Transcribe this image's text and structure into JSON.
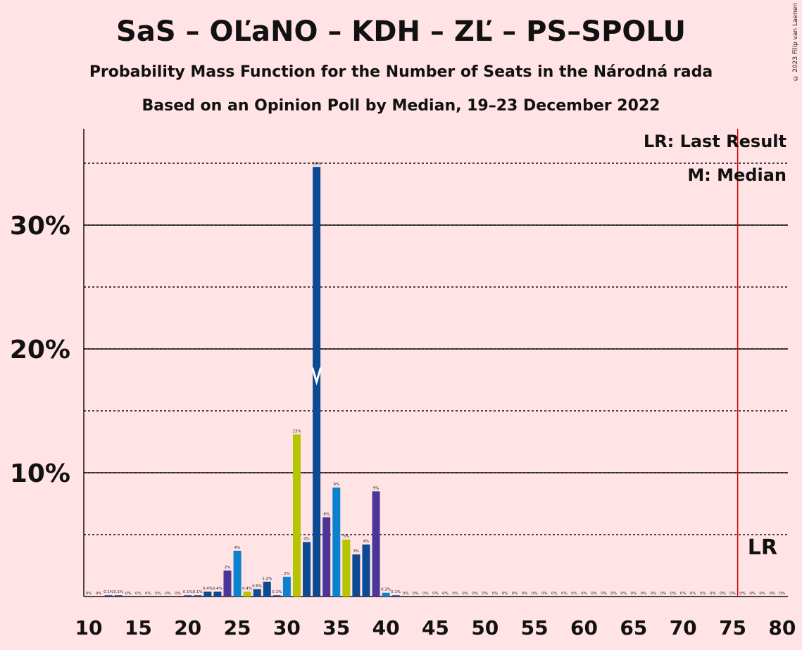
{
  "title": "SaS – OĽaNO – KDH – ZĽ – PS–SPOLU",
  "subtitle": "Probability Mass Function for the Number of Seats in the Národná rada",
  "subtitle2": "Based on an Opinion Poll by Median, 19–23 December 2022",
  "copyright": "© 2023 Filip van Laenen",
  "legend": {
    "lr": "LR: Last Result",
    "median": "M: Median"
  },
  "lr_marker_label": "LR",
  "median_marker_label": "M",
  "colors": {
    "background": "#FFE3E5",
    "blue_dark": "#0C4A93",
    "blue_light": "#0A82D0",
    "yellow_green": "#B7C400",
    "purple": "#4C3596",
    "last_result_line": "#D00000"
  },
  "chart_data": {
    "type": "bar",
    "xlim": [
      10,
      80
    ],
    "ylim": [
      0,
      38
    ],
    "x_ticks": [
      10,
      15,
      20,
      25,
      30,
      35,
      40,
      45,
      50,
      55,
      60,
      65,
      70,
      75,
      80
    ],
    "y_ticks": [
      {
        "value": 10,
        "label": "10%"
      },
      {
        "value": 20,
        "label": "20%"
      },
      {
        "value": 30,
        "label": "30%"
      }
    ],
    "dotted_gridlines": [
      5,
      10,
      15,
      20,
      25,
      30,
      35
    ],
    "solid_gridlines": [
      10,
      20,
      30
    ],
    "median": 33,
    "last_result": 76,
    "bars": [
      {
        "x": 10,
        "value": 0,
        "label": "0%",
        "color": "blue_dark"
      },
      {
        "x": 11,
        "value": 0,
        "label": "0%",
        "color": "blue_dark"
      },
      {
        "x": 12,
        "value": 0.1,
        "label": "0.1%",
        "color": "blue_dark"
      },
      {
        "x": 13,
        "value": 0.1,
        "label": "0.1%",
        "color": "blue_dark"
      },
      {
        "x": 14,
        "value": 0,
        "label": "0%",
        "color": "blue_dark"
      },
      {
        "x": 15,
        "value": 0,
        "label": "0%",
        "color": "blue_dark"
      },
      {
        "x": 16,
        "value": 0,
        "label": "0%",
        "color": "blue_dark"
      },
      {
        "x": 17,
        "value": 0,
        "label": "0%",
        "color": "blue_dark"
      },
      {
        "x": 18,
        "value": 0,
        "label": "0%",
        "color": "blue_dark"
      },
      {
        "x": 19,
        "value": 0,
        "label": "0%",
        "color": "blue_dark"
      },
      {
        "x": 20,
        "value": 0.1,
        "label": "0.1%",
        "color": "blue_dark"
      },
      {
        "x": 21,
        "value": 0.1,
        "label": "0.1%",
        "color": "blue_dark"
      },
      {
        "x": 22,
        "value": 0.4,
        "label": "0.4%",
        "color": "blue_dark"
      },
      {
        "x": 23,
        "value": 0.4,
        "label": "0.4%",
        "color": "blue_dark"
      },
      {
        "x": 24,
        "value": 2.1,
        "label": "2%",
        "color": "purple"
      },
      {
        "x": 25,
        "value": 3.7,
        "label": "4%",
        "color": "blue_light"
      },
      {
        "x": 26,
        "value": 0.4,
        "label": "0.4%",
        "color": "yellow_green"
      },
      {
        "x": 27,
        "value": 0.6,
        "label": "0.6%",
        "color": "blue_dark"
      },
      {
        "x": 28,
        "value": 1.2,
        "label": "1.2%",
        "color": "blue_dark"
      },
      {
        "x": 29,
        "value": 0.1,
        "label": "0.1%",
        "color": "blue_dark"
      },
      {
        "x": 30,
        "value": 1.6,
        "label": "2%",
        "color": "blue_light"
      },
      {
        "x": 31,
        "value": 13.1,
        "label": "13%",
        "color": "yellow_green"
      },
      {
        "x": 32,
        "value": 4.4,
        "label": "4%",
        "color": "blue_dark"
      },
      {
        "x": 33,
        "value": 34.7,
        "label": "35%",
        "color": "blue_dark"
      },
      {
        "x": 34,
        "value": 6.4,
        "label": "6%",
        "color": "purple"
      },
      {
        "x": 35,
        "value": 8.8,
        "label": "9%",
        "color": "blue_light"
      },
      {
        "x": 36,
        "value": 4.6,
        "label": "5%",
        "color": "yellow_green"
      },
      {
        "x": 37,
        "value": 3.4,
        "label": "3%",
        "color": "blue_dark"
      },
      {
        "x": 38,
        "value": 4.2,
        "label": "4%",
        "color": "blue_dark"
      },
      {
        "x": 39,
        "value": 8.5,
        "label": "9%",
        "color": "purple"
      },
      {
        "x": 40,
        "value": 0.3,
        "label": "0.3%",
        "color": "blue_light"
      },
      {
        "x": 41,
        "value": 0.1,
        "label": "0.1%",
        "color": "blue_dark"
      },
      {
        "x": 42,
        "value": 0,
        "label": "0%",
        "color": "blue_dark"
      },
      {
        "x": 43,
        "value": 0,
        "label": "0%",
        "color": "blue_dark"
      },
      {
        "x": 44,
        "value": 0,
        "label": "0%",
        "color": "blue_dark"
      },
      {
        "x": 45,
        "value": 0,
        "label": "0%",
        "color": "blue_dark"
      },
      {
        "x": 46,
        "value": 0,
        "label": "0%",
        "color": "blue_dark"
      },
      {
        "x": 47,
        "value": 0,
        "label": "0%",
        "color": "blue_dark"
      },
      {
        "x": 48,
        "value": 0,
        "label": "0%",
        "color": "blue_dark"
      },
      {
        "x": 49,
        "value": 0,
        "label": "0%",
        "color": "blue_dark"
      },
      {
        "x": 50,
        "value": 0,
        "label": "0%",
        "color": "blue_dark"
      },
      {
        "x": 51,
        "value": 0,
        "label": "0%",
        "color": "blue_dark"
      },
      {
        "x": 52,
        "value": 0,
        "label": "0%",
        "color": "blue_dark"
      },
      {
        "x": 53,
        "value": 0,
        "label": "0%",
        "color": "blue_dark"
      },
      {
        "x": 54,
        "value": 0,
        "label": "0%",
        "color": "blue_dark"
      },
      {
        "x": 55,
        "value": 0,
        "label": "0%",
        "color": "blue_dark"
      },
      {
        "x": 56,
        "value": 0,
        "label": "0%",
        "color": "blue_dark"
      },
      {
        "x": 57,
        "value": 0,
        "label": "0%",
        "color": "blue_dark"
      },
      {
        "x": 58,
        "value": 0,
        "label": "0%",
        "color": "blue_dark"
      },
      {
        "x": 59,
        "value": 0,
        "label": "0%",
        "color": "blue_dark"
      },
      {
        "x": 60,
        "value": 0,
        "label": "0%",
        "color": "blue_dark"
      },
      {
        "x": 61,
        "value": 0,
        "label": "0%",
        "color": "blue_dark"
      },
      {
        "x": 62,
        "value": 0,
        "label": "0%",
        "color": "blue_dark"
      },
      {
        "x": 63,
        "value": 0,
        "label": "0%",
        "color": "blue_dark"
      },
      {
        "x": 64,
        "value": 0,
        "label": "0%",
        "color": "blue_dark"
      },
      {
        "x": 65,
        "value": 0,
        "label": "0%",
        "color": "blue_dark"
      },
      {
        "x": 66,
        "value": 0,
        "label": "0%",
        "color": "blue_dark"
      },
      {
        "x": 67,
        "value": 0,
        "label": "0%",
        "color": "blue_dark"
      },
      {
        "x": 68,
        "value": 0,
        "label": "0%",
        "color": "blue_dark"
      },
      {
        "x": 69,
        "value": 0,
        "label": "0%",
        "color": "blue_dark"
      },
      {
        "x": 70,
        "value": 0,
        "label": "0%",
        "color": "blue_dark"
      },
      {
        "x": 71,
        "value": 0,
        "label": "0%",
        "color": "blue_dark"
      },
      {
        "x": 72,
        "value": 0,
        "label": "0%",
        "color": "blue_dark"
      },
      {
        "x": 73,
        "value": 0,
        "label": "0%",
        "color": "blue_dark"
      },
      {
        "x": 74,
        "value": 0,
        "label": "0%",
        "color": "blue_dark"
      },
      {
        "x": 75,
        "value": 0,
        "label": "0%",
        "color": "blue_dark"
      },
      {
        "x": 76,
        "value": 0,
        "label": "0%",
        "color": "blue_dark"
      },
      {
        "x": 77,
        "value": 0,
        "label": "0%",
        "color": "blue_dark"
      },
      {
        "x": 78,
        "value": 0,
        "label": "0%",
        "color": "blue_dark"
      },
      {
        "x": 79,
        "value": 0,
        "label": "0%",
        "color": "blue_dark"
      },
      {
        "x": 80,
        "value": 0,
        "label": "0%",
        "color": "blue_dark"
      }
    ]
  }
}
